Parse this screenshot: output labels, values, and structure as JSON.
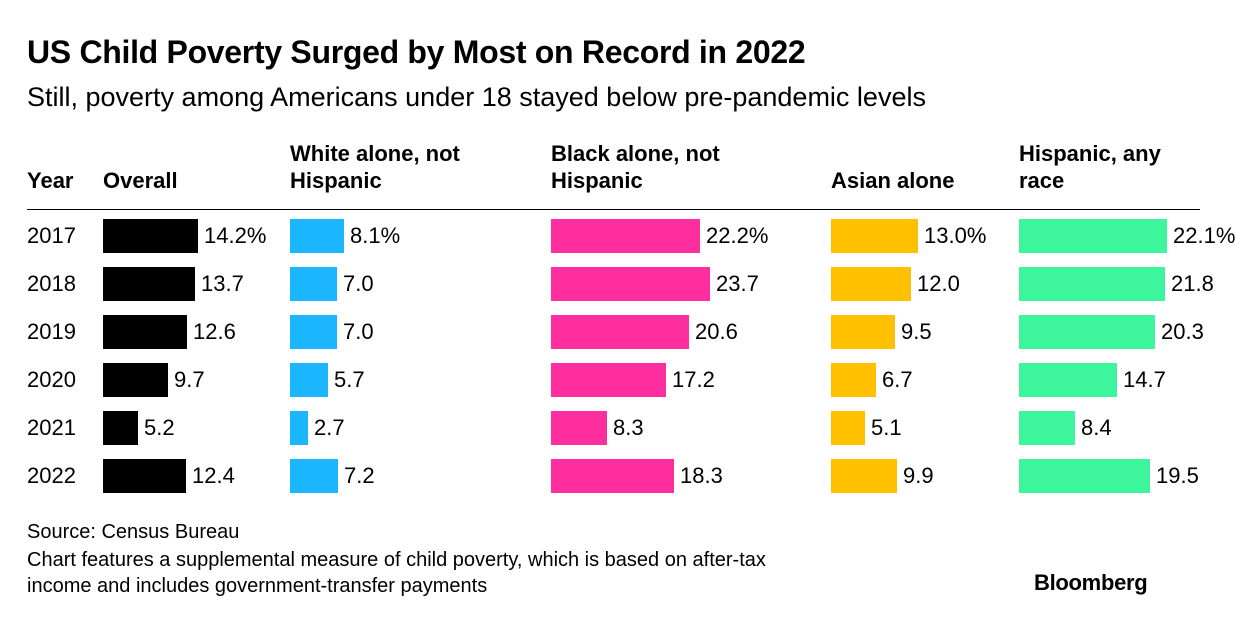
{
  "title": "US Child Poverty Surged by Most on Record in 2022",
  "subtitle": "Still, poverty among Americans under 18 stayed below pre-pandemic levels",
  "chart_data": {
    "type": "bar",
    "orientation": "horizontal",
    "row_header": "Year",
    "categories": [
      "2017",
      "2018",
      "2019",
      "2020",
      "2021",
      "2022"
    ],
    "series": [
      {
        "name": "Overall",
        "header_lines": [
          "Overall"
        ],
        "color": "#000000",
        "values": [
          14.2,
          13.7,
          12.6,
          9.7,
          5.2,
          12.4
        ],
        "labels": [
          "14.2%",
          "13.7",
          "12.6",
          "9.7",
          "5.2",
          "12.4"
        ]
      },
      {
        "name": "White alone, not Hispanic",
        "header_lines": [
          "White alone, not",
          "Hispanic"
        ],
        "color": "#1ab6ff",
        "values": [
          8.1,
          7.0,
          7.0,
          5.7,
          2.7,
          7.2
        ],
        "labels": [
          "8.1%",
          "7.0",
          "7.0",
          "5.7",
          "2.7",
          "7.2"
        ]
      },
      {
        "name": "Black alone, not Hispanic",
        "header_lines": [
          "Black alone, not",
          "Hispanic"
        ],
        "color": "#ff2e9f",
        "values": [
          22.2,
          23.7,
          20.6,
          17.2,
          8.3,
          18.3
        ],
        "labels": [
          "22.2%",
          "23.7",
          "20.6",
          "17.2",
          "8.3",
          "18.3"
        ]
      },
      {
        "name": "Asian alone",
        "header_lines": [
          "Asian alone"
        ],
        "color": "#ffc000",
        "values": [
          13.0,
          12.0,
          9.5,
          6.7,
          5.1,
          9.9
        ],
        "labels": [
          "13.0%",
          "12.0",
          "9.5",
          "6.7",
          "5.1",
          "9.9"
        ]
      },
      {
        "name": "Hispanic, any race",
        "header_lines": [
          "Hispanic, any",
          "race"
        ],
        "color": "#3df59b",
        "values": [
          22.1,
          21.8,
          20.3,
          14.7,
          8.4,
          19.5
        ],
        "labels": [
          "22.1%",
          "21.8",
          "20.3",
          "14.7",
          "8.4",
          "19.5"
        ]
      }
    ]
  },
  "footer": {
    "source": "Source: Census Bureau",
    "note_line1": "Chart features a supplemental measure of child poverty, which is based on after-tax",
    "note_line2": "income and includes government-transfer payments"
  },
  "brand": "Bloomberg"
}
